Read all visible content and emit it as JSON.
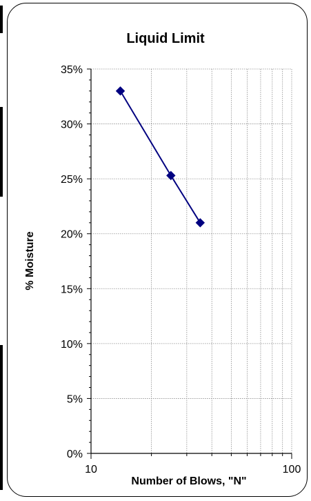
{
  "chart_data": {
    "type": "line",
    "title": "Liquid Limit",
    "xlabel": "Number of Blows, \"N\"",
    "ylabel": "% Moisture",
    "x_scale": "log",
    "xlim": [
      10,
      100
    ],
    "ylim": [
      0,
      0.35
    ],
    "x_ticks": [
      10,
      100
    ],
    "x_tick_labels": [
      "10",
      "100"
    ],
    "y_ticks": [
      0,
      0.05,
      0.1,
      0.15,
      0.2,
      0.25,
      0.3,
      0.35
    ],
    "y_tick_labels": [
      "0%",
      "5%",
      "10%",
      "15%",
      "20%",
      "25%",
      "30%",
      "35%"
    ],
    "grid": true,
    "legend": "none",
    "series": [
      {
        "x": [
          14,
          25,
          35
        ],
        "y": [
          0.33,
          0.253,
          0.21
        ],
        "marker": "diamond",
        "color": "#000080"
      }
    ]
  }
}
